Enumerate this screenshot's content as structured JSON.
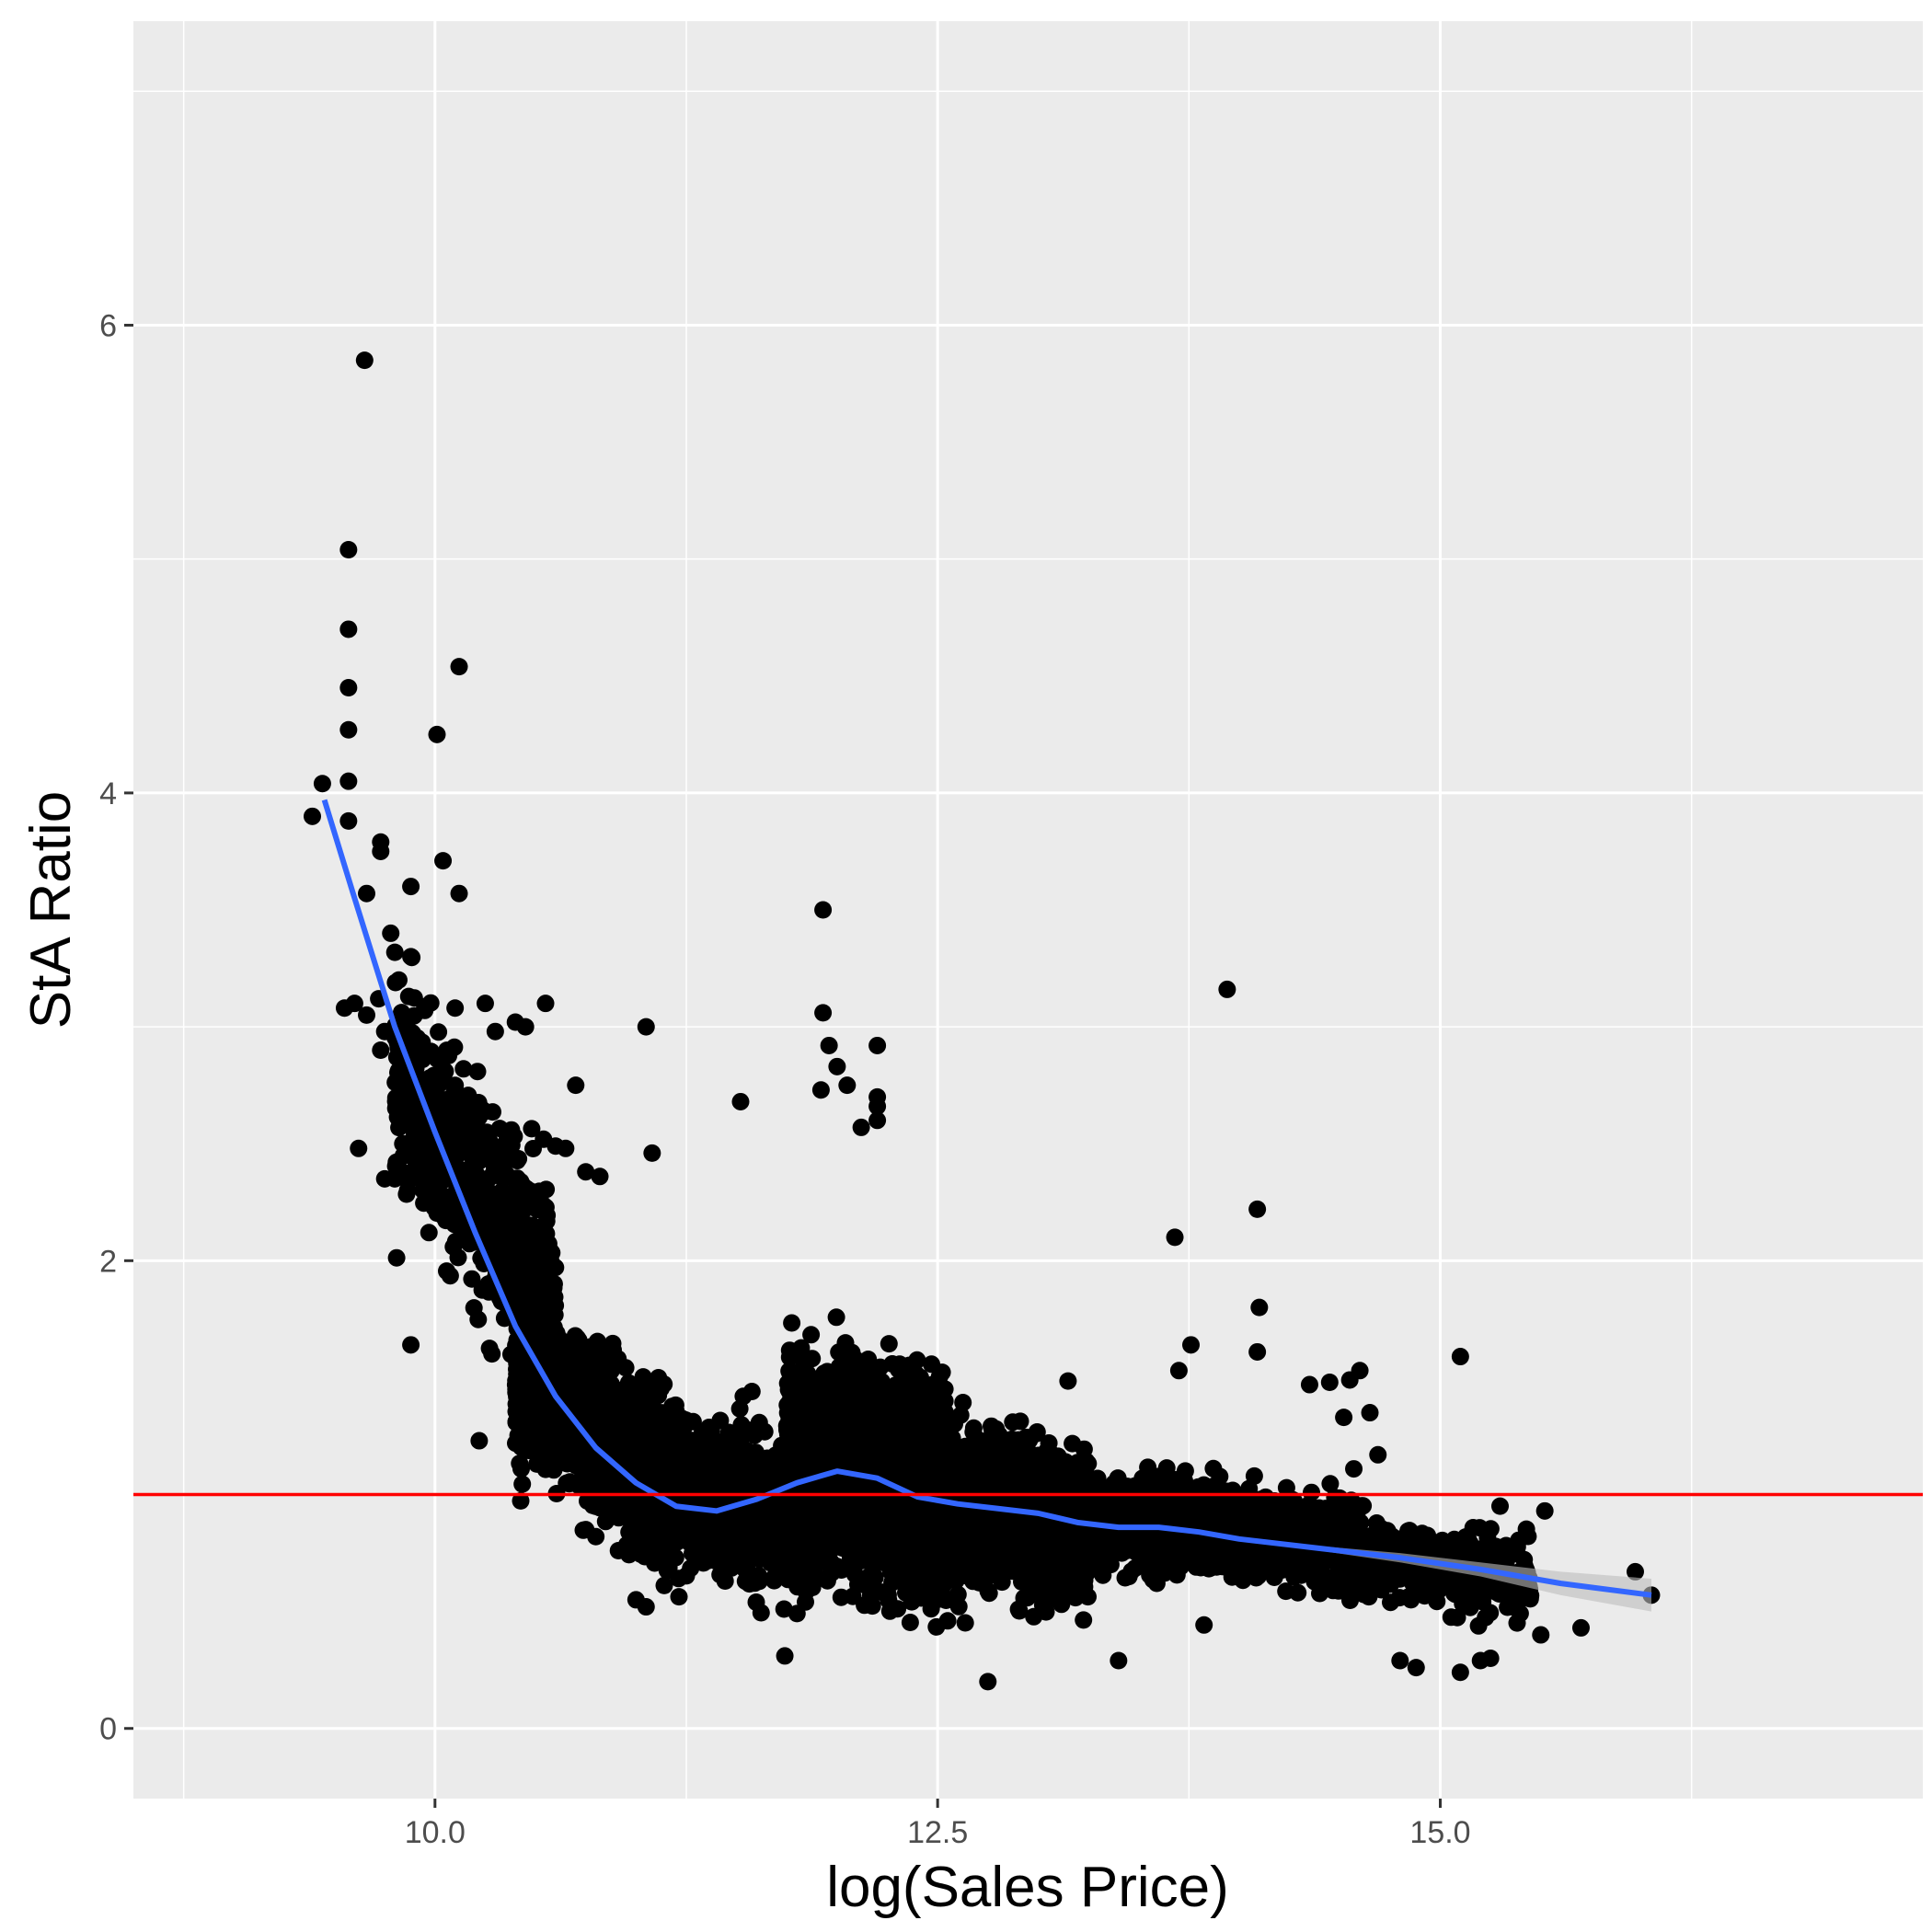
{
  "chart_data": {
    "type": "scatter",
    "title": "",
    "xlabel": "log(Sales Price)",
    "ylabel": "StA Ratio",
    "xlim": [
      8.5,
      17.4
    ],
    "ylim": [
      -0.3,
      7.3
    ],
    "x_ticks": [
      10.0,
      12.5,
      15.0
    ],
    "x_tick_labels": [
      "10.0",
      "12.5",
      "15.0"
    ],
    "x_minor_ticks": [
      8.75,
      11.25,
      13.75,
      16.25
    ],
    "y_ticks": [
      0,
      2,
      4,
      6
    ],
    "y_tick_labels": [
      "0",
      "2",
      "4",
      "6"
    ],
    "y_minor_ticks": [
      1,
      3,
      5,
      7
    ],
    "grid": true,
    "legend": "none",
    "colors": {
      "panel_background": "#ebebeb",
      "grid": "#ffffff",
      "points": "#000000",
      "smooth_line": "#3366ff",
      "confidence_band": "#bdbdbd",
      "reference_line": "#ff0000"
    },
    "reference_line": {
      "orientation": "horizontal",
      "y": 1.0
    },
    "smooth": {
      "x": [
        9.45,
        9.6,
        9.8,
        10.0,
        10.2,
        10.4,
        10.6,
        10.8,
        11.0,
        11.2,
        11.4,
        11.6,
        11.8,
        12.0,
        12.2,
        12.4,
        12.6,
        12.8,
        13.0,
        13.2,
        13.4,
        13.6,
        13.8,
        14.0,
        14.4,
        14.8,
        15.2,
        15.6,
        16.05
      ],
      "y": [
        3.97,
        3.55,
        3.0,
        2.55,
        2.12,
        1.72,
        1.42,
        1.2,
        1.05,
        0.95,
        0.93,
        0.98,
        1.05,
        1.1,
        1.07,
        0.99,
        0.96,
        0.94,
        0.92,
        0.88,
        0.86,
        0.86,
        0.84,
        0.81,
        0.77,
        0.73,
        0.68,
        0.62,
        0.57
      ],
      "band": [
        0.0,
        0.0,
        0.0,
        0.0,
        0.0,
        0.0,
        0.0,
        0.0,
        0.0,
        0.0,
        0.0,
        0.0,
        0.0,
        0.0,
        0.0,
        0.0,
        0.0,
        0.0,
        0.0,
        0.0,
        0.0,
        0.0,
        0.0,
        0.0,
        0.01,
        0.02,
        0.03,
        0.05,
        0.07
      ]
    },
    "points": [
      [
        9.65,
        5.85
      ],
      [
        9.57,
        5.04
      ],
      [
        9.57,
        4.7
      ],
      [
        9.57,
        4.45
      ],
      [
        9.57,
        4.27
      ],
      [
        9.57,
        4.05
      ],
      [
        9.57,
        3.88
      ],
      [
        10.12,
        4.54
      ],
      [
        10.01,
        4.25
      ],
      [
        9.39,
        3.9
      ],
      [
        9.44,
        4.04
      ],
      [
        9.66,
        3.57
      ],
      [
        9.73,
        3.79
      ],
      [
        9.73,
        3.75
      ],
      [
        10.04,
        3.71
      ],
      [
        10.12,
        3.57
      ],
      [
        9.88,
        3.6
      ],
      [
        9.78,
        3.4
      ],
      [
        9.88,
        3.3
      ],
      [
        9.82,
        3.2
      ],
      [
        9.6,
        3.1
      ],
      [
        9.55,
        3.08
      ],
      [
        9.66,
        3.05
      ],
      [
        9.72,
        3.12
      ],
      [
        9.75,
        2.98
      ],
      [
        9.73,
        2.9
      ],
      [
        10.1,
        3.08
      ],
      [
        10.25,
        3.1
      ],
      [
        10.3,
        2.98
      ],
      [
        10.4,
        3.02
      ],
      [
        10.45,
        3.0
      ],
      [
        10.55,
        3.1
      ],
      [
        11.05,
        3.0
      ],
      [
        10.7,
        2.75
      ],
      [
        11.52,
        2.68
      ],
      [
        9.62,
        2.48
      ],
      [
        9.8,
        2.35
      ],
      [
        9.75,
        2.35
      ],
      [
        9.97,
        2.12
      ],
      [
        9.88,
        1.64
      ],
      [
        10.22,
        1.23
      ],
      [
        11.08,
        2.46
      ],
      [
        10.6,
        2.49
      ],
      [
        10.65,
        2.48
      ],
      [
        10.75,
        2.38
      ],
      [
        10.82,
        2.36
      ],
      [
        10.75,
        0.85
      ],
      [
        10.8,
        0.82
      ],
      [
        11.0,
        0.55
      ],
      [
        11.05,
        0.52
      ],
      [
        11.74,
        0.31
      ],
      [
        12.75,
        0.2
      ],
      [
        11.93,
        3.5
      ],
      [
        11.93,
        3.06
      ],
      [
        11.96,
        2.92
      ],
      [
        12.2,
        2.92
      ],
      [
        12.0,
        2.83
      ],
      [
        12.05,
        2.75
      ],
      [
        11.92,
        2.73
      ],
      [
        12.2,
        2.7
      ],
      [
        12.2,
        2.66
      ],
      [
        12.2,
        2.6
      ],
      [
        12.12,
        2.57
      ],
      [
        13.94,
        3.16
      ],
      [
        14.09,
        2.22
      ],
      [
        14.1,
        1.8
      ],
      [
        14.09,
        1.61
      ],
      [
        13.68,
        2.1
      ],
      [
        13.76,
        1.64
      ],
      [
        13.7,
        1.53
      ],
      [
        15.1,
        1.59
      ],
      [
        14.6,
        1.53
      ],
      [
        14.45,
        1.48
      ],
      [
        14.35,
        1.47
      ],
      [
        14.55,
        1.49
      ],
      [
        14.65,
        1.35
      ],
      [
        14.52,
        1.33
      ],
      [
        14.69,
        1.17
      ],
      [
        14.57,
        1.11
      ],
      [
        15.52,
        0.93
      ],
      [
        15.97,
        0.67
      ],
      [
        16.05,
        0.57
      ],
      [
        15.7,
        0.43
      ],
      [
        15.1,
        0.24
      ],
      [
        15.2,
        0.29
      ],
      [
        15.25,
        0.3
      ],
      [
        14.8,
        0.29
      ],
      [
        14.88,
        0.26
      ],
      [
        15.5,
        0.4
      ],
      [
        12.55,
        0.46
      ],
      [
        13.4,
        0.29
      ]
    ],
    "clusters": [
      {
        "x": [
          9.8,
          10.6
        ],
        "y_center": [
          2.75,
          1.85
        ],
        "spread": 0.38,
        "n": 650
      },
      {
        "x": [
          10.4,
          11.2
        ],
        "y_center": [
          1.5,
          1.05
        ],
        "spread": 0.28,
        "n": 1400
      },
      {
        "x": [
          11.0,
          11.9
        ],
        "y_center": [
          1.05,
          0.88
        ],
        "spread": 0.24,
        "n": 1600
      },
      {
        "x": [
          11.75,
          12.55
        ],
        "y_center": [
          1.15,
          1.0
        ],
        "spread": 0.36,
        "n": 2600
      },
      {
        "x": [
          12.3,
          13.25
        ],
        "y_center": [
          0.98,
          0.86
        ],
        "spread": 0.26,
        "n": 2000
      },
      {
        "x": [
          13.25,
          13.75
        ],
        "y_center": [
          0.88,
          0.85
        ],
        "spread": 0.16,
        "n": 450
      },
      {
        "x": [
          13.5,
          14.6
        ],
        "y_center": [
          0.9,
          0.78
        ],
        "spread": 0.16,
        "n": 900
      },
      {
        "x": [
          14.5,
          15.45
        ],
        "y_center": [
          0.74,
          0.64
        ],
        "spread": 0.14,
        "n": 420
      }
    ]
  }
}
